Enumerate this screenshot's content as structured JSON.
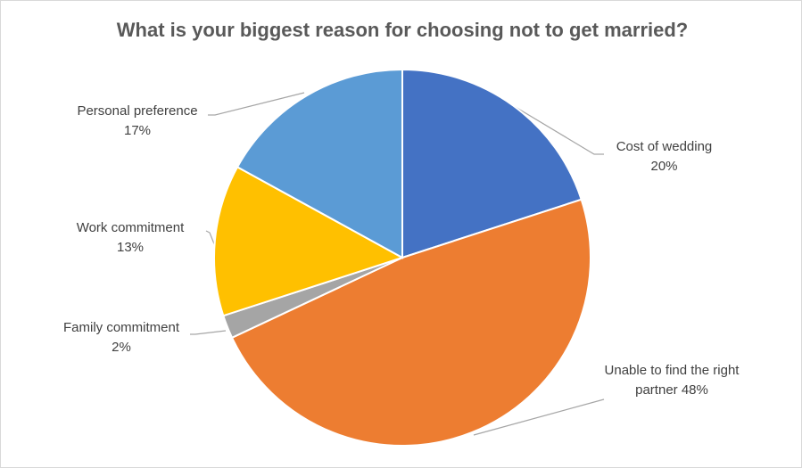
{
  "chart_data": {
    "type": "pie",
    "title": "What is your biggest reason for choosing not to get married?",
    "categories": [
      "Cost of wedding",
      "Unable to find the right partner",
      "Family commitment",
      "Work commitment",
      "Personal preference"
    ],
    "values": [
      20,
      48,
      2,
      13,
      17
    ],
    "value_labels": [
      "20%",
      "48%",
      "2%",
      "13%",
      "17%"
    ],
    "colors": [
      "#4472c4",
      "#ed7d31",
      "#a5a5a5",
      "#ffc000",
      "#5b9bd5"
    ]
  }
}
